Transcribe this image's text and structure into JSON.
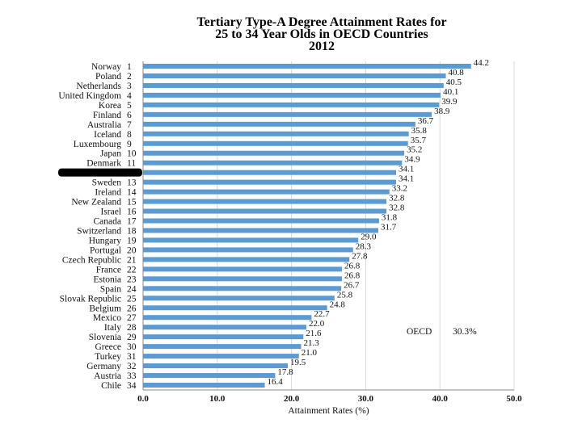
{
  "chart_data": {
    "type": "bar",
    "orientation": "horizontal",
    "title_lines": [
      "Tertiary Type-A Degree Attainment Rates for",
      "25 to 34 Year Olds in OECD Countries",
      "2012"
    ],
    "xlabel": "Attainment Rates (%)",
    "xlim": [
      0,
      50
    ],
    "xticks": [
      "0.0",
      "10.0",
      "20.0",
      "30.0",
      "40.0",
      "50.0"
    ],
    "grid": true,
    "bar_color": "#5b9bd5",
    "categories": [
      {
        "name": "Norway",
        "rank": "1",
        "value": 44.2,
        "label": "44.2"
      },
      {
        "name": "Poland",
        "rank": "2",
        "value": 40.8,
        "label": "40.8"
      },
      {
        "name": "Netherlands",
        "rank": "3",
        "value": 40.5,
        "label": "40.5"
      },
      {
        "name": "United Kingdom",
        "rank": "4",
        "value": 40.1,
        "label": "40.1"
      },
      {
        "name": "Korea",
        "rank": "5",
        "value": 39.9,
        "label": "39.9"
      },
      {
        "name": "Finland",
        "rank": "6",
        "value": 38.9,
        "label": "38.9"
      },
      {
        "name": "Australia",
        "rank": "7",
        "value": 36.7,
        "label": "36.7"
      },
      {
        "name": "Iceland",
        "rank": "8",
        "value": 35.8,
        "label": "35.8"
      },
      {
        "name": "Luxembourg",
        "rank": "9",
        "value": 35.7,
        "label": "35.7"
      },
      {
        "name": "Japan",
        "rank": "10",
        "value": 35.2,
        "label": "35.2"
      },
      {
        "name": "Denmark",
        "rank": "11",
        "value": 34.9,
        "label": "34.9"
      },
      {
        "name": "",
        "rank": "",
        "value": 34.1,
        "label": "34.1",
        "redacted": true
      },
      {
        "name": "Sweden",
        "rank": "13",
        "value": 34.1,
        "label": "34.1"
      },
      {
        "name": "Ireland",
        "rank": "14",
        "value": 33.2,
        "label": "33.2"
      },
      {
        "name": "New Zealand",
        "rank": "15",
        "value": 32.8,
        "label": "32.8"
      },
      {
        "name": "Israel",
        "rank": "16",
        "value": 32.8,
        "label": "32.8"
      },
      {
        "name": "Canada",
        "rank": "17",
        "value": 31.8,
        "label": "31.8"
      },
      {
        "name": "Switzerland",
        "rank": "18",
        "value": 31.7,
        "label": "31.7"
      },
      {
        "name": "Hungary",
        "rank": "19",
        "value": 29.0,
        "label": "29.0"
      },
      {
        "name": "Portugal",
        "rank": "20",
        "value": 28.3,
        "label": "28.3"
      },
      {
        "name": "Czech Republic",
        "rank": "21",
        "value": 27.8,
        "label": "27.8"
      },
      {
        "name": "France",
        "rank": "22",
        "value": 26.8,
        "label": "26.8"
      },
      {
        "name": "Estonia",
        "rank": "23",
        "value": 26.8,
        "label": "26.8"
      },
      {
        "name": "Spain",
        "rank": "24",
        "value": 26.7,
        "label": "26.7"
      },
      {
        "name": "Slovak Republic",
        "rank": "25",
        "value": 25.8,
        "label": "25.8"
      },
      {
        "name": "Belgium",
        "rank": "26",
        "value": 24.8,
        "label": "24.8"
      },
      {
        "name": "Mexico",
        "rank": "27",
        "value": 22.7,
        "label": "22.7"
      },
      {
        "name": "Italy",
        "rank": "28",
        "value": 22.0,
        "label": "22.0"
      },
      {
        "name": "Slovenia",
        "rank": "29",
        "value": 21.6,
        "label": "21.6"
      },
      {
        "name": "Greece",
        "rank": "30",
        "value": 21.3,
        "label": "21.3"
      },
      {
        "name": "Turkey",
        "rank": "31",
        "value": 21.0,
        "label": "21.0"
      },
      {
        "name": "Germany",
        "rank": "32",
        "value": 19.5,
        "label": "19.5"
      },
      {
        "name": "Austria",
        "rank": "33",
        "value": 17.8,
        "label": "17.8"
      },
      {
        "name": "Chile",
        "rank": "34",
        "value": 16.4,
        "label": "16.4"
      }
    ],
    "annotation": {
      "label": "OECD",
      "value_text": "30.3%",
      "value": 30.3
    }
  }
}
